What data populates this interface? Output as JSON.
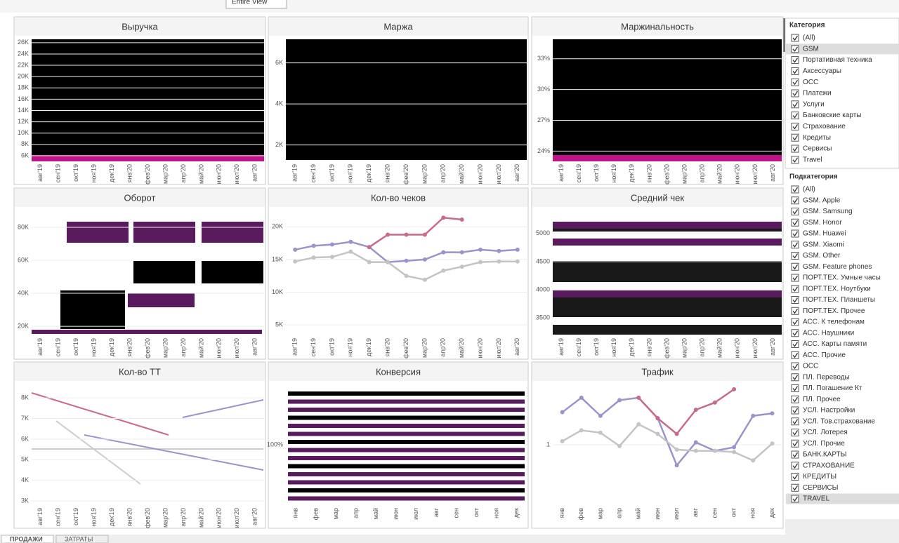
{
  "toolbar": {
    "view": "Entire View"
  },
  "panels": [
    {
      "title": "Выручка",
      "ylim": [
        5000,
        26600
      ],
      "yticks": [
        {
          "value": 26000,
          "label": "26K"
        },
        {
          "value": 24000,
          "label": "24K"
        },
        {
          "value": 22000,
          "label": "22K"
        },
        {
          "value": 20000,
          "label": "20K"
        },
        {
          "value": 18000,
          "label": "18K"
        },
        {
          "value": 16000,
          "label": "16K"
        },
        {
          "value": 14000,
          "label": "14K"
        },
        {
          "value": 12000,
          "label": "12K"
        },
        {
          "value": 10000,
          "label": "10K"
        },
        {
          "value": 8000,
          "label": "8K"
        },
        {
          "value": 6000,
          "label": "6K"
        }
      ],
      "categories": [
        "авг'19",
        "сен'19",
        "окт'19",
        "ноя'19",
        "дек'19",
        "янв'20",
        "фев'20",
        "мар'20",
        "апр'20",
        "май'20",
        "июн'20",
        "июл'20",
        "авг'20"
      ]
    },
    {
      "title": "Маржа",
      "ylim": [
        1200,
        7150
      ],
      "yticks": [
        {
          "value": 6000,
          "label": "6K"
        },
        {
          "value": 4000,
          "label": "4K"
        },
        {
          "value": 2000,
          "label": "2K"
        }
      ],
      "categories": [
        "авг'19",
        "сен'19",
        "окт'19",
        "ноя'19",
        "дек'19",
        "янв'20",
        "фев'20",
        "мар'20",
        "апр'20",
        "май'20",
        "июн'20",
        "июл'20",
        "авг'20"
      ]
    },
    {
      "title": "Маржинальность",
      "ylim": [
        23,
        34.9
      ],
      "yticks": [
        {
          "value": 33,
          "label": "33%"
        },
        {
          "value": 30,
          "label": "30%"
        },
        {
          "value": 27,
          "label": "27%"
        },
        {
          "value": 24,
          "label": "24%"
        }
      ],
      "categories": [
        "авг'19",
        "сен'19",
        "окт'19",
        "ноя'19",
        "дек'19",
        "янв'20",
        "фев'20",
        "мар'20",
        "апр'20",
        "май'20",
        "июн'20",
        "июл'20",
        "авг'20"
      ]
    },
    {
      "title": "Оборот",
      "ylim": [
        14500,
        90200
      ],
      "yticks": [
        {
          "value": 80000,
          "label": "80K"
        },
        {
          "value": 60000,
          "label": "60K"
        },
        {
          "value": 40000,
          "label": "40K"
        },
        {
          "value": 20000,
          "label": "20K"
        }
      ],
      "categories": [
        "авг'19",
        "сен'19",
        "окт'19",
        "ноя'19",
        "дек'19",
        "янв'20",
        "фев'20",
        "мар'20",
        "апр'20",
        "май'20",
        "июн'20",
        "июл'20",
        "авг'20"
      ]
    },
    {
      "title": "Кол-во чеков",
      "ylim": [
        3400,
        22500
      ],
      "yticks": [
        {
          "value": 20000,
          "label": "20K"
        },
        {
          "value": 15000,
          "label": "15K"
        },
        {
          "value": 10000,
          "label": "10K"
        },
        {
          "value": 5000,
          "label": "5K"
        }
      ],
      "categories": [
        "авг'19",
        "сен'19",
        "окт'19",
        "ноя'19",
        "дек'19",
        "янв'20",
        "фев'20",
        "мар'20",
        "апр'20",
        "май'20",
        "июн'20",
        "июл'20",
        "авг'20"
      ],
      "series": [
        {
          "color": "#9b94cc",
          "values": [
            16500,
            17100,
            17300,
            17700,
            16900,
            14600,
            14800,
            15000,
            16100,
            16100,
            16500,
            16300,
            16500
          ]
        },
        {
          "color": "#c86a8c",
          "values": [
            null,
            null,
            null,
            null,
            16900,
            18800,
            18800,
            18800,
            21400,
            21100,
            null,
            null,
            null
          ]
        },
        {
          "color": "#c4c4c4",
          "values": [
            14700,
            15300,
            15400,
            16200,
            14600,
            14600,
            12500,
            11900,
            13300,
            13900,
            14600,
            14700,
            14700
          ]
        }
      ]
    },
    {
      "title": "Средний чек",
      "ylim": [
        3190,
        5410
      ],
      "yticks": [
        5000,
        4500,
        4000,
        3500
      ],
      "categories": [
        "авг'19",
        "сен'19",
        "окт'19",
        "ноя'19",
        "дек'19",
        "янв'20",
        "фев'20",
        "мар'20",
        "апр'20",
        "май'20",
        "июн'20",
        "июл'20",
        "авг'20"
      ]
    },
    {
      "title": "Кол-во ТТ",
      "ylim": [
        2800,
        8650
      ],
      "yticks": [
        {
          "value": 8000,
          "label": "8K"
        },
        {
          "value": 7000,
          "label": "7K"
        },
        {
          "value": 6000,
          "label": "6K"
        },
        {
          "value": 5000,
          "label": "5K"
        },
        {
          "value": 4000,
          "label": "4K"
        },
        {
          "value": 3000,
          "label": "3K"
        }
      ],
      "categories": [
        "авг'19",
        "сен'19",
        "окт'19",
        "ноя'19",
        "дек'19",
        "янв'20",
        "фев'20",
        "мар'20",
        "апр'20",
        "май'20",
        "июн'20",
        "июл'20",
        "авг'20"
      ]
    },
    {
      "title": "Конверсия",
      "ylim": [
        60,
        140
      ],
      "yticks": [
        {
          "value": 100,
          "label": "100%"
        }
      ],
      "categories": [
        "янв",
        "фев",
        "мар",
        "апр",
        "май",
        "июн",
        "июл",
        "авг",
        "сен",
        "окт",
        "ноя",
        "дек"
      ]
    },
    {
      "title": "Трафик",
      "ylim": [
        0.5,
        1.5
      ],
      "yticks": [
        1
      ],
      "categories": [
        "янв",
        "фев",
        "мар",
        "апр",
        "май",
        "июн",
        "июл",
        "авг",
        "сен",
        "окт",
        "ноя",
        "дек"
      ],
      "series": [
        {
          "color": "#9b94cc",
          "values": [
            1.27,
            1.39,
            1.24,
            1.37,
            1.39,
            1.22,
            0.83,
            1.02,
            0.95,
            0.98,
            1.24,
            1.26
          ]
        },
        {
          "color": "#c86a8c",
          "values": [
            null,
            null,
            null,
            null,
            1.39,
            1.22,
            1.09,
            1.29,
            1.35,
            1.46,
            null,
            null
          ]
        },
        {
          "color": "#c4c4c4",
          "values": [
            1.03,
            1.12,
            1.1,
            0.99,
            1.17,
            1.09,
            0.96,
            0.95,
            0.95,
            0.94,
            0.87,
            1.01
          ]
        }
      ]
    }
  ],
  "filters": [
    {
      "title": "Категория",
      "items": [
        "(All)",
        "GSM",
        "Портативная техника",
        "Аксессуары",
        "ОСС",
        "Платежи",
        "Услуги",
        "Банковские карты",
        "Страхование",
        "Кредиты",
        "Сервисы",
        "Travel"
      ]
    },
    {
      "title": "Подкатегория",
      "items": [
        "(All)",
        "GSM. Apple",
        "GSM. Samsung",
        "GSM. Honor",
        "GSM. Huawei",
        "GSM. Xiaomi",
        "GSM. Other",
        "GSM. Feature phones",
        "ПОРТ.ТЕХ. Умные часы",
        "ПОРТ.ТЕХ. Ноутбуки",
        "ПОРТ.ТЕХ. Планшеты",
        "ПОРТ.ТЕХ. Прочее",
        "АСС. К телефонам",
        "АСС. Наушники",
        "АСС. Карты памяти",
        "АСС. Прочие",
        "ОСС",
        "ПЛ. Переводы",
        "ПЛ. Погашение Кт",
        "ПЛ. Прочее",
        "УСЛ. Настройки",
        "УСЛ. Тов.страхование",
        "УСЛ. Лотерея",
        "УСЛ. Прочие",
        "БАНК.КАРТЫ",
        "СТРАХОВАНИЕ",
        "КРЕДИТЫ",
        "СЕРВИСЫ",
        "TRAVEL"
      ]
    }
  ],
  "tabs": [
    "ПРОДАЖИ",
    "ЗАТРАТЫ"
  ]
}
